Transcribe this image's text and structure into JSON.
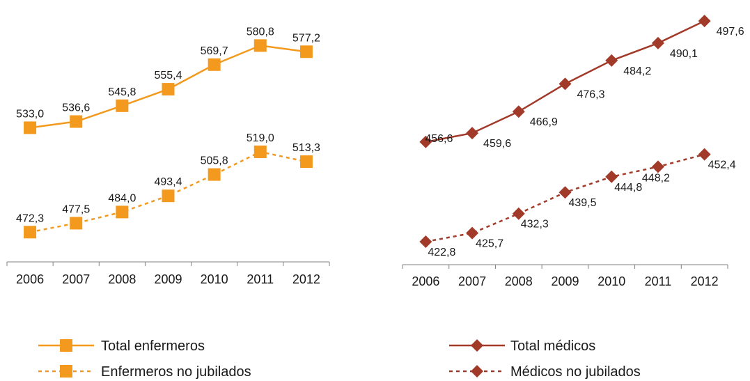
{
  "chart_data": [
    {
      "type": "line",
      "title": "",
      "xlabel": "",
      "ylabel": "",
      "categories": [
        "2006",
        "2007",
        "2008",
        "2009",
        "2010",
        "2011",
        "2012"
      ],
      "series": [
        {
          "name": "Total enfermeros",
          "values": [
            533.0,
            536.6,
            545.8,
            555.4,
            569.7,
            580.8,
            577.2
          ],
          "labels": [
            "533,0",
            "536,6",
            "545,8",
            "555,4",
            "569,7",
            "580,8",
            "577,2"
          ],
          "color": "#F39A1E",
          "line": "solid",
          "marker": "square"
        },
        {
          "name": "Enfermeros no jubilados",
          "values": [
            472.3,
            477.5,
            484.0,
            493.4,
            505.8,
            519.0,
            513.3
          ],
          "labels": [
            "472,3",
            "477,5",
            "484,0",
            "493,4",
            "505,8",
            "519,0",
            "513,3"
          ],
          "color": "#F39A1E",
          "line": "dashed",
          "marker": "square"
        }
      ],
      "legend": "bottom",
      "grid": false,
      "y_axis_visible": false
    },
    {
      "type": "line",
      "title": "",
      "xlabel": "",
      "ylabel": "",
      "categories": [
        "2006",
        "2007",
        "2008",
        "2009",
        "2010",
        "2011",
        "2012"
      ],
      "series": [
        {
          "name": "Total médicos",
          "values": [
            456.6,
            459.6,
            466.9,
            476.3,
            484.2,
            490.1,
            497.6
          ],
          "labels": [
            "456,6",
            "459,6",
            "466,9",
            "476,3",
            "484,2",
            "490,1",
            "497,6"
          ],
          "color": "#A23A2A",
          "line": "solid",
          "marker": "diamond"
        },
        {
          "name": "Médicos no jubilados",
          "values": [
            422.8,
            425.7,
            432.3,
            439.5,
            444.8,
            448.2,
            452.4
          ],
          "labels": [
            "422,8",
            "425,7",
            "432,3",
            "439,5",
            "444,8",
            "448,2",
            "452,4"
          ],
          "color": "#A23A2A",
          "line": "dashed",
          "marker": "diamond"
        }
      ],
      "legend": "bottom",
      "grid": false,
      "y_axis_visible": false
    }
  ]
}
